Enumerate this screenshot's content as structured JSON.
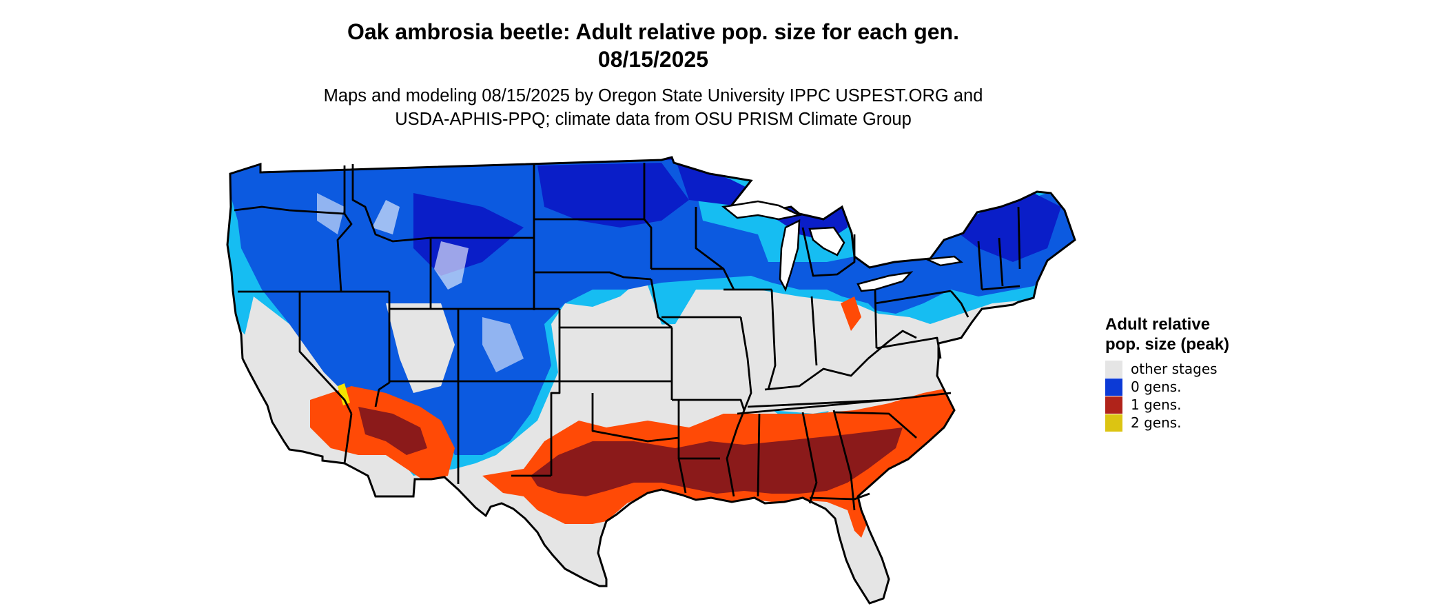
{
  "title_line1": "Oak ambrosia beetle: Adult relative pop. size for each gen.",
  "title_line2": "08/15/2025",
  "subtitle_line1": "Maps and modeling 08/15/2025 by Oregon State University IPPC USPEST.ORG and",
  "subtitle_line2": "USDA-APHIS-PPQ; climate data from OSU PRISM Climate Group",
  "legend": {
    "title": "Adult relative pop. size (peak)",
    "items": [
      {
        "label": "other stages",
        "color": "#e5e5e5"
      },
      {
        "label": "0 gens.",
        "color": "#0c3ad6"
      },
      {
        "label": "1 gens.",
        "color": "#b0231a"
      },
      {
        "label": "2 gens.",
        "color": "#dcc412"
      }
    ]
  },
  "map_colors": {
    "background": "#e5e5e5",
    "gen0_light": "#16bdf2",
    "gen0_mid": "#0c5ae0",
    "gen0_dark": "#0a1ec8",
    "gen1_light": "#ff4a06",
    "gen1_dark": "#8b1a1a",
    "gen2": "#f4e400",
    "border": "#000000"
  }
}
